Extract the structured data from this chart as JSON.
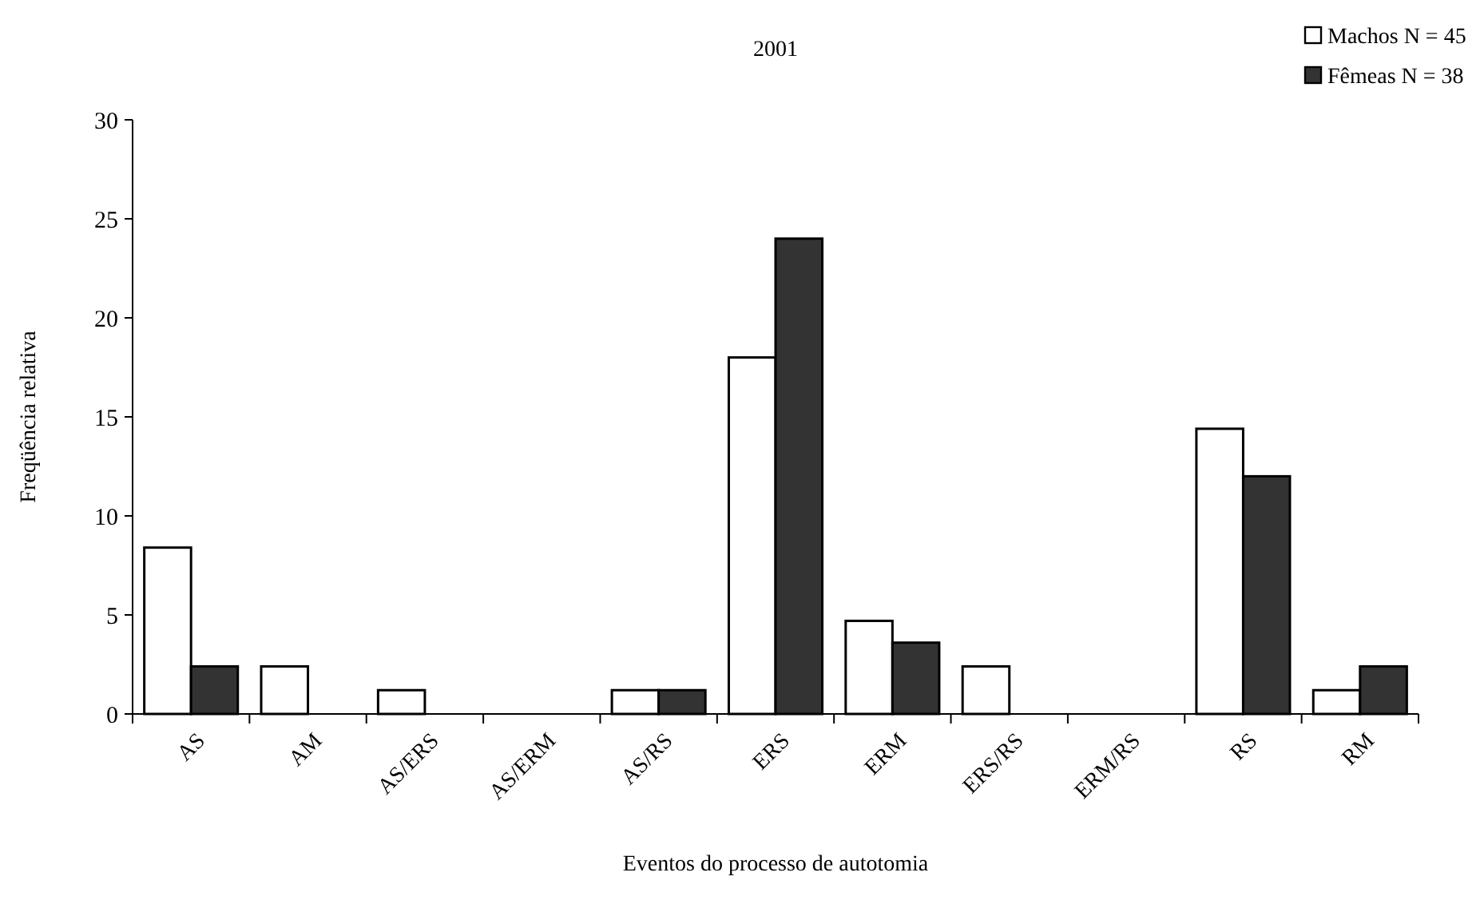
{
  "chart_data": {
    "type": "bar",
    "title": "2001",
    "xlabel": "Eventos do processo de autotomia",
    "ylabel": "Freqüência relativa",
    "categories": [
      "AS",
      "AM",
      "AS/ERS",
      "AS/ERM",
      "AS/RS",
      "ERS",
      "ERM",
      "ERS/RS",
      "ERM/RS",
      "RS",
      "RM"
    ],
    "series": [
      {
        "name": "Machos N = 45",
        "color": "#ffffff",
        "values": [
          8.4,
          2.4,
          1.2,
          0,
          1.2,
          18,
          4.7,
          2.4,
          0,
          14.4,
          1.2
        ]
      },
      {
        "name": "Fêmeas N = 38",
        "color": "#333333",
        "values": [
          2.4,
          0,
          0,
          0,
          1.2,
          24,
          3.6,
          0,
          0,
          12,
          2.4
        ]
      }
    ],
    "ylim": [
      0,
      30
    ],
    "yticks": [
      0,
      5,
      10,
      15,
      20,
      25,
      30
    ],
    "grid": false,
    "legend": "top right"
  }
}
